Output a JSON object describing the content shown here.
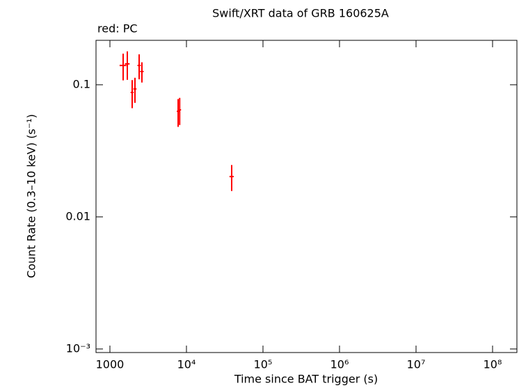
{
  "chart_data": {
    "type": "errorbar",
    "title": "Swift/XRT data of GRB 160625A",
    "subtitle": "red: PC",
    "x_label": "Time since BAT trigger (s)",
    "y_label": "Count Rate (0.3–10 keV) (s⁻¹)",
    "xscale": "log",
    "yscale": "log",
    "xlim": [
      658,
      208000000
    ],
    "ylim": [
      0.00094,
      0.217
    ],
    "xticks": [
      1000,
      {
        "value": 10000,
        "label": "10⁴"
      },
      {
        "value": 100000,
        "label": "10⁵"
      },
      {
        "value": 1000000,
        "label": "10⁶"
      },
      {
        "value": 10000000,
        "label": "10⁷"
      },
      {
        "value": 100000000,
        "label": "10⁸"
      }
    ],
    "yticks": [
      {
        "value": 0.001,
        "label": "10⁻³"
      },
      0.01,
      0.1
    ],
    "series": [
      {
        "name": "PC",
        "color": "#ff0000",
        "x": [
          1489,
          1688,
          1953,
          2125,
          2409,
          2620,
          7787,
          8155,
          39000
        ],
        "xerr": [
          150,
          120,
          90,
          100,
          120,
          140,
          300,
          350,
          2500
        ],
        "values": [
          0.14,
          0.144,
          0.0875,
          0.093,
          0.14,
          0.126,
          0.063,
          0.0646,
          0.0202
        ],
        "yerr": [
          0.032,
          0.035,
          0.021,
          0.02,
          0.03,
          0.022,
          0.015,
          0.015,
          0.0045
        ]
      }
    ]
  }
}
